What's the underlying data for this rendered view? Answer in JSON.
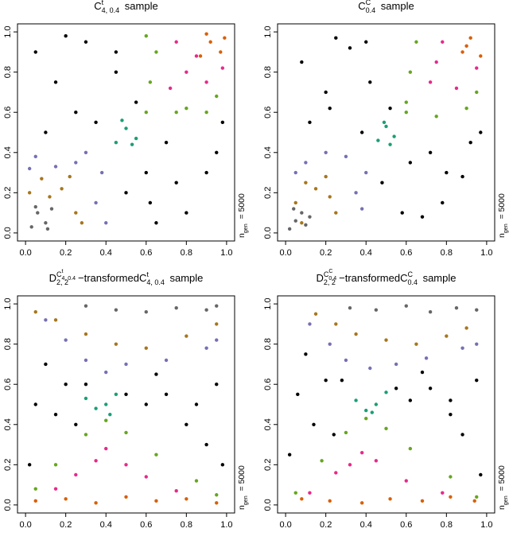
{
  "chart_data": [
    {
      "type": "scatter",
      "title_parts": [
        "C",
        "t",
        "4, 0.4",
        " sample"
      ],
      "annotation_parts": [
        "n",
        "gen",
        " = 5000"
      ],
      "xlim": [
        -0.04,
        1.04
      ],
      "ylim": [
        -0.04,
        1.04
      ],
      "xticks": [
        {
          "value": 0,
          "label": "0.0"
        },
        0.2,
        0.4,
        0.6,
        0.8,
        {
          "value": 1,
          "label": "1.0"
        }
      ],
      "yticks": [
        {
          "value": 0,
          "label": "0.0"
        },
        0.2,
        0.4,
        0.6,
        0.8,
        {
          "value": 1,
          "label": "1.0"
        }
      ],
      "series": [
        {
          "color": "#000000",
          "x": [
            0.05,
            0.15,
            0.3,
            0.45,
            0.6,
            0.8,
            0.95,
            0.1,
            0.25,
            0.35,
            0.5,
            0.65,
            0.9,
            0.7,
            0.55,
            0.45,
            0.2,
            0.75,
            0.98,
            0.62
          ],
          "values": [
            0.9,
            0.75,
            0.95,
            0.8,
            0.3,
            0.1,
            0.4,
            0.5,
            0.6,
            0.55,
            0.2,
            0.05,
            0.3,
            0.45,
            0.65,
            0.9,
            0.98,
            0.25,
            0.55,
            0.15
          ]
        },
        {
          "color": "#666666",
          "x": [
            0.03,
            0.06,
            0.1,
            0.13,
            0.05,
            0.11
          ],
          "values": [
            0.03,
            0.1,
            0.05,
            0.12,
            0.13,
            0.02
          ]
        },
        {
          "color": "#a6761d",
          "x": [
            0.02,
            0.08,
            0.18,
            0.25,
            0.22,
            0.28,
            0.12
          ],
          "values": [
            0.2,
            0.27,
            0.22,
            0.1,
            0.28,
            0.05,
            0.18
          ]
        },
        {
          "color": "#7570b3",
          "x": [
            0.05,
            0.15,
            0.3,
            0.38,
            0.35,
            0.4,
            0.25,
            0.02
          ],
          "values": [
            0.38,
            0.33,
            0.4,
            0.3,
            0.15,
            0.05,
            0.35,
            0.32
          ]
        },
        {
          "color": "#1b9e77",
          "x": [
            0.45,
            0.5,
            0.55,
            0.48,
            0.53
          ],
          "values": [
            0.45,
            0.52,
            0.47,
            0.56,
            0.44
          ]
        },
        {
          "color": "#66a61e",
          "x": [
            0.6,
            0.65,
            0.6,
            0.8,
            0.95,
            0.75,
            0.62,
            0.9
          ],
          "values": [
            0.6,
            0.9,
            0.98,
            0.62,
            0.68,
            0.6,
            0.75,
            0.6
          ]
        },
        {
          "color": "#e7298a",
          "x": [
            0.72,
            0.8,
            0.9,
            0.75,
            0.98,
            0.85
          ],
          "values": [
            0.72,
            0.8,
            0.75,
            0.95,
            0.82,
            0.88
          ]
        },
        {
          "color": "#d95f02",
          "x": [
            0.87,
            0.92,
            0.97,
            0.9,
            0.99
          ],
          "values": [
            0.88,
            0.95,
            0.9,
            0.99,
            0.97
          ]
        }
      ]
    },
    {
      "type": "scatter",
      "title_parts": [
        "C",
        "C",
        "0.4",
        " sample"
      ],
      "annotation_parts": [
        "n",
        "gen",
        " = 5000"
      ],
      "xlim": [
        -0.04,
        1.04
      ],
      "ylim": [
        -0.04,
        1.04
      ],
      "xticks": [
        {
          "value": 0,
          "label": "0.0"
        },
        0.2,
        0.4,
        0.6,
        0.8,
        {
          "value": 1,
          "label": "1.0"
        }
      ],
      "yticks": [
        {
          "value": 0,
          "label": "0.0"
        },
        0.2,
        0.4,
        0.6,
        0.8,
        {
          "value": 1,
          "label": "1.0"
        }
      ],
      "series": [
        {
          "color": "#000000",
          "x": [
            0.08,
            0.2,
            0.32,
            0.42,
            0.62,
            0.78,
            0.92,
            0.12,
            0.22,
            0.38,
            0.48,
            0.68,
            0.88,
            0.72,
            0.52,
            0.4,
            0.25,
            0.8,
            0.97,
            0.58
          ],
          "values": [
            0.85,
            0.7,
            0.92,
            0.75,
            0.35,
            0.15,
            0.45,
            0.55,
            0.62,
            0.5,
            0.25,
            0.08,
            0.28,
            0.4,
            0.62,
            0.95,
            0.97,
            0.3,
            0.5,
            0.1
          ]
        },
        {
          "color": "#666666",
          "x": [
            0.02,
            0.05,
            0.08,
            0.1,
            0.04,
            0.12
          ],
          "values": [
            0.02,
            0.06,
            0.1,
            0.04,
            0.12,
            0.08
          ]
        },
        {
          "color": "#a6761d",
          "x": [
            0.05,
            0.1,
            0.2,
            0.25,
            0.08,
            0.22,
            0.15
          ],
          "values": [
            0.15,
            0.25,
            0.28,
            0.1,
            0.05,
            0.18,
            0.22
          ]
        },
        {
          "color": "#7570b3",
          "x": [
            0.1,
            0.2,
            0.3,
            0.4,
            0.38,
            0.35,
            0.05
          ],
          "values": [
            0.35,
            0.4,
            0.38,
            0.3,
            0.12,
            0.2,
            0.3
          ]
        },
        {
          "color": "#1b9e77",
          "x": [
            0.46,
            0.5,
            0.54,
            0.49,
            0.52
          ],
          "values": [
            0.46,
            0.53,
            0.48,
            0.55,
            0.44
          ]
        },
        {
          "color": "#66a61e",
          "x": [
            0.6,
            0.65,
            0.62,
            0.75,
            0.9,
            0.95,
            0.6
          ],
          "values": [
            0.6,
            0.95,
            0.8,
            0.58,
            0.62,
            0.7,
            0.65
          ]
        },
        {
          "color": "#e7298a",
          "x": [
            0.72,
            0.78,
            0.85,
            0.95,
            0.75
          ],
          "values": [
            0.75,
            0.95,
            0.72,
            0.82,
            0.85
          ]
        },
        {
          "color": "#d95f02",
          "x": [
            0.88,
            0.92,
            0.97,
            0.9
          ],
          "values": [
            0.9,
            0.97,
            0.88,
            0.93
          ]
        }
      ]
    },
    {
      "type": "scatter",
      "title_parts": [
        "D",
        "2, 2",
        "C",
        "t",
        "4, 0.4",
        "−transformed",
        "C",
        "t",
        "4, 0.4",
        " sample"
      ],
      "annotation_parts": [
        "n",
        "gen",
        " = 5000"
      ],
      "xlim": [
        -0.04,
        1.04
      ],
      "ylim": [
        -0.04,
        1.04
      ],
      "xticks": [
        {
          "value": 0,
          "label": "0.0"
        },
        0.2,
        0.4,
        0.6,
        0.8,
        {
          "value": 1,
          "label": "1.0"
        }
      ],
      "yticks": [
        {
          "value": 0,
          "label": "0.0"
        },
        0.2,
        0.4,
        0.6,
        0.8,
        {
          "value": 1,
          "label": "1.0"
        }
      ],
      "series": [
        {
          "color": "#000000",
          "x": [
            0.02,
            0.05,
            0.1,
            0.15,
            0.2,
            0.25,
            0.6,
            0.7,
            0.8,
            0.9,
            0.95,
            0.98,
            0.5,
            0.65,
            0.3,
            0.85
          ],
          "values": [
            0.2,
            0.5,
            0.7,
            0.45,
            0.6,
            0.4,
            0.5,
            0.55,
            0.4,
            0.3,
            0.6,
            0.2,
            0.55,
            0.65,
            0.6,
            0.5
          ]
        },
        {
          "color": "#d95f02",
          "x": [
            0.05,
            0.2,
            0.35,
            0.5,
            0.65,
            0.8,
            0.95
          ],
          "values": [
            0.02,
            0.03,
            0.01,
            0.04,
            0.02,
            0.03,
            0.01
          ]
        },
        {
          "color": "#e7298a",
          "x": [
            0.15,
            0.25,
            0.4,
            0.5,
            0.6,
            0.75,
            0.35
          ],
          "values": [
            0.08,
            0.15,
            0.28,
            0.2,
            0.14,
            0.07,
            0.22
          ]
        },
        {
          "color": "#66a61e",
          "x": [
            0.05,
            0.15,
            0.3,
            0.4,
            0.5,
            0.65,
            0.85,
            0.95
          ],
          "values": [
            0.08,
            0.2,
            0.35,
            0.42,
            0.36,
            0.25,
            0.12,
            0.05
          ]
        },
        {
          "color": "#1b9e77",
          "x": [
            0.3,
            0.35,
            0.4,
            0.45,
            0.42
          ],
          "values": [
            0.53,
            0.48,
            0.5,
            0.55,
            0.45
          ]
        },
        {
          "color": "#7570b3",
          "x": [
            0.1,
            0.2,
            0.3,
            0.4,
            0.5,
            0.7,
            0.9,
            0.95
          ],
          "values": [
            0.92,
            0.82,
            0.72,
            0.66,
            0.7,
            0.72,
            0.78,
            0.82
          ]
        },
        {
          "color": "#a6761d",
          "x": [
            0.05,
            0.15,
            0.3,
            0.45,
            0.6,
            0.8,
            0.95
          ],
          "values": [
            0.96,
            0.92,
            0.85,
            0.8,
            0.78,
            0.84,
            0.9
          ]
        },
        {
          "color": "#666666",
          "x": [
            0.3,
            0.45,
            0.6,
            0.75,
            0.9,
            0.95
          ],
          "values": [
            0.99,
            0.97,
            0.96,
            0.98,
            0.97,
            0.99
          ]
        }
      ]
    },
    {
      "type": "scatter",
      "title_parts": [
        "D",
        "2, 2",
        "C",
        "C",
        "0.4",
        "−transformed",
        "C",
        "C",
        "0.4",
        " sample"
      ],
      "annotation_parts": [
        "n",
        "gen",
        " = 5000"
      ],
      "xlim": [
        -0.04,
        1.04
      ],
      "ylim": [
        -0.04,
        1.04
      ],
      "xticks": [
        {
          "value": 0,
          "label": "0.0"
        },
        0.2,
        0.4,
        0.6,
        0.8,
        {
          "value": 1,
          "label": "1.0"
        }
      ],
      "yticks": [
        {
          "value": 0,
          "label": "0.0"
        },
        0.2,
        0.4,
        0.6,
        0.8,
        {
          "value": 1,
          "label": "1.0"
        }
      ],
      "series": [
        {
          "color": "#000000",
          "x": [
            0.02,
            0.06,
            0.1,
            0.14,
            0.2,
            0.24,
            0.62,
            0.72,
            0.82,
            0.88,
            0.95,
            0.97,
            0.55,
            0.68,
            0.28,
            0.82
          ],
          "values": [
            0.25,
            0.55,
            0.75,
            0.4,
            0.62,
            0.35,
            0.52,
            0.58,
            0.45,
            0.35,
            0.62,
            0.15,
            0.58,
            0.66,
            0.62,
            0.52
          ]
        },
        {
          "color": "#d95f02",
          "x": [
            0.08,
            0.22,
            0.38,
            0.52,
            0.68,
            0.82,
            0.94
          ],
          "values": [
            0.03,
            0.02,
            0.01,
            0.03,
            0.02,
            0.04,
            0.02
          ]
        },
        {
          "color": "#e7298a",
          "x": [
            0.12,
            0.25,
            0.38,
            0.45,
            0.6,
            0.78,
            0.32
          ],
          "values": [
            0.06,
            0.16,
            0.26,
            0.22,
            0.12,
            0.06,
            0.2
          ]
        },
        {
          "color": "#66a61e",
          "x": [
            0.05,
            0.18,
            0.3,
            0.4,
            0.5,
            0.62,
            0.82,
            0.95
          ],
          "values": [
            0.06,
            0.22,
            0.36,
            0.43,
            0.38,
            0.28,
            0.14,
            0.04
          ]
        },
        {
          "color": "#1b9e77",
          "x": [
            0.35,
            0.4,
            0.45,
            0.5,
            0.43
          ],
          "values": [
            0.52,
            0.47,
            0.5,
            0.56,
            0.46
          ]
        },
        {
          "color": "#7570b3",
          "x": [
            0.12,
            0.22,
            0.3,
            0.42,
            0.55,
            0.7,
            0.88,
            0.95
          ],
          "values": [
            0.9,
            0.8,
            0.72,
            0.68,
            0.7,
            0.73,
            0.78,
            0.8
          ]
        },
        {
          "color": "#a6761d",
          "x": [
            0.15,
            0.25,
            0.35,
            0.5,
            0.65,
            0.8,
            0.9
          ],
          "values": [
            0.95,
            0.9,
            0.85,
            0.82,
            0.8,
            0.84,
            0.88
          ]
        },
        {
          "color": "#666666",
          "x": [
            0.32,
            0.45,
            0.6,
            0.72,
            0.85,
            0.95
          ],
          "values": [
            0.98,
            0.97,
            0.99,
            0.96,
            0.98,
            0.97
          ]
        }
      ]
    }
  ]
}
